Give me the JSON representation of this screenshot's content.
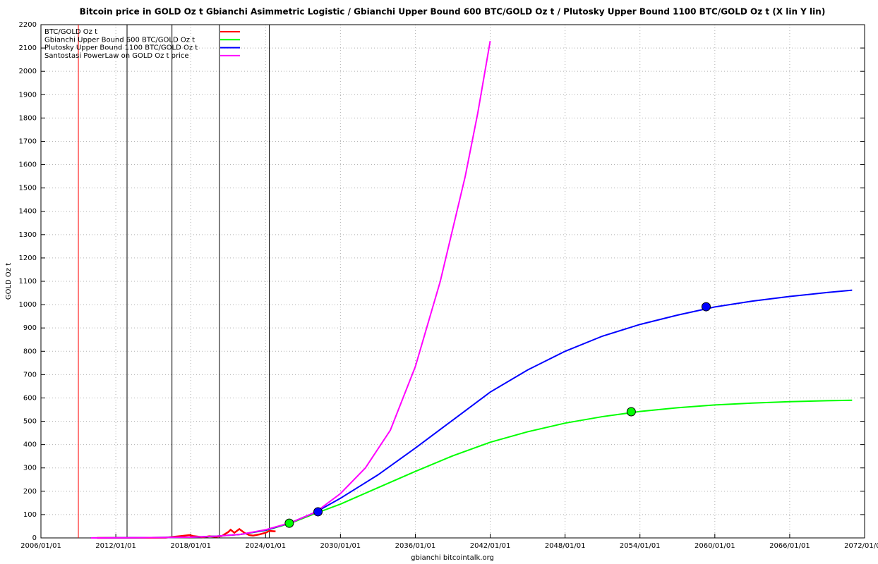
{
  "chart_data": {
    "type": "line",
    "title": "Bitcoin price in GOLD Oz t Gbianchi Asimmetric Logistic / Gbianchi Upper Bound 600  BTC/GOLD Oz t / Plutosky Upper Bound 1100  BTC/GOLD Oz t  (X lin Y lin)",
    "y_label": "GOLD Oz t",
    "x_label": "gbianchi bitcointalk.org",
    "xlim": [
      2006,
      2072
    ],
    "ylim": [
      0,
      2200
    ],
    "xticks": [
      {
        "value": 2006,
        "label": "2006/01/01"
      },
      {
        "value": 2012,
        "label": "2012/01/01"
      },
      {
        "value": 2018,
        "label": "2018/01/01"
      },
      {
        "value": 2024,
        "label": "2024/01/01"
      },
      {
        "value": 2030,
        "label": "2030/01/01"
      },
      {
        "value": 2036,
        "label": "2036/01/01"
      },
      {
        "value": 2042,
        "label": "2042/01/01"
      },
      {
        "value": 2048,
        "label": "2048/01/01"
      },
      {
        "value": 2054,
        "label": "2054/01/01"
      },
      {
        "value": 2060,
        "label": "2060/01/01"
      },
      {
        "value": 2066,
        "label": "2066/01/01"
      },
      {
        "value": 2072,
        "label": "2072/01/01"
      }
    ],
    "yticks": [
      0,
      100,
      200,
      300,
      400,
      500,
      600,
      700,
      800,
      900,
      1000,
      1100,
      1200,
      1300,
      1400,
      1500,
      1600,
      1700,
      1800,
      1900,
      2000,
      2100,
      2200
    ],
    "grid": true,
    "legend": "top-left",
    "series": [
      {
        "name": "BTC/GOLD Oz t",
        "color": "#ff0000",
        "width": 2.5,
        "x": [
          2010.5,
          2013,
          2016,
          2017.9,
          2018.2,
          2019,
          2019.5,
          2020,
          2020.5,
          2021,
          2021.2,
          2021.5,
          2021.9,
          2022.3,
          2022.7,
          2023,
          2023.5,
          2024,
          2024.3,
          2024.8
        ],
        "values": [
          0,
          0.5,
          1,
          12,
          8,
          3,
          7,
          5,
          8,
          25,
          35,
          22,
          38,
          22,
          12,
          10,
          15,
          22,
          30,
          28
        ]
      },
      {
        "name": "Gbianchi Upper Bound 600  BTC/GOLD Oz t",
        "color": "#00ff00",
        "width": 2,
        "x": [
          2010,
          2014,
          2018,
          2020,
          2022,
          2024,
          2026,
          2028,
          2030,
          2033,
          2036,
          2039,
          2042,
          2045,
          2048,
          2051,
          2054,
          2057,
          2060,
          2063,
          2066,
          2069,
          2071
        ],
        "values": [
          0,
          1,
          3,
          7,
          15,
          32,
          63,
          105,
          145,
          215,
          285,
          352,
          410,
          455,
          492,
          520,
          542,
          558,
          570,
          578,
          584,
          588,
          590
        ]
      },
      {
        "name": "Plutosky Upper Bound 1100  BTC/GOLD Oz t",
        "color": "#0000ff",
        "width": 2,
        "x": [
          2010,
          2014,
          2018,
          2020,
          2022,
          2024,
          2026,
          2028,
          2030,
          2033,
          2036,
          2039,
          2042,
          2045,
          2048,
          2051,
          2054,
          2057,
          2060,
          2063,
          2066,
          2069,
          2071
        ],
        "values": [
          0,
          1,
          3,
          7,
          15,
          33,
          65,
          110,
          170,
          270,
          385,
          505,
          625,
          720,
          800,
          865,
          915,
          955,
          990,
          1015,
          1035,
          1052,
          1062
        ]
      },
      {
        "name": "Santostasi PowerLaw on GOLD Oz t price",
        "color": "#ff00ff",
        "width": 2,
        "x": [
          2010,
          2014,
          2018,
          2020,
          2022,
          2024,
          2026,
          2028,
          2030,
          2032,
          2034,
          2036,
          2038,
          2040,
          2041,
          2042
        ],
        "values": [
          0,
          1,
          3,
          7,
          15,
          35,
          65,
          110,
          190,
          300,
          462,
          734,
          1100,
          1550,
          1820,
          2130
        ]
      }
    ],
    "vlines": [
      {
        "x": 2009.0,
        "color": "#ff0000"
      },
      {
        "x": 2012.9,
        "color": "#000000"
      },
      {
        "x": 2016.5,
        "color": "#000000"
      },
      {
        "x": 2020.3,
        "color": "#000000"
      },
      {
        "x": 2024.3,
        "color": "#000000"
      }
    ],
    "markers": [
      {
        "x": 2025.9,
        "y": 63,
        "color": "#00ff00"
      },
      {
        "x": 2028.2,
        "y": 112,
        "color": "#0000ff"
      },
      {
        "x": 2053.3,
        "y": 541,
        "color": "#00ff00"
      },
      {
        "x": 2059.3,
        "y": 991,
        "color": "#0000ff"
      }
    ]
  }
}
